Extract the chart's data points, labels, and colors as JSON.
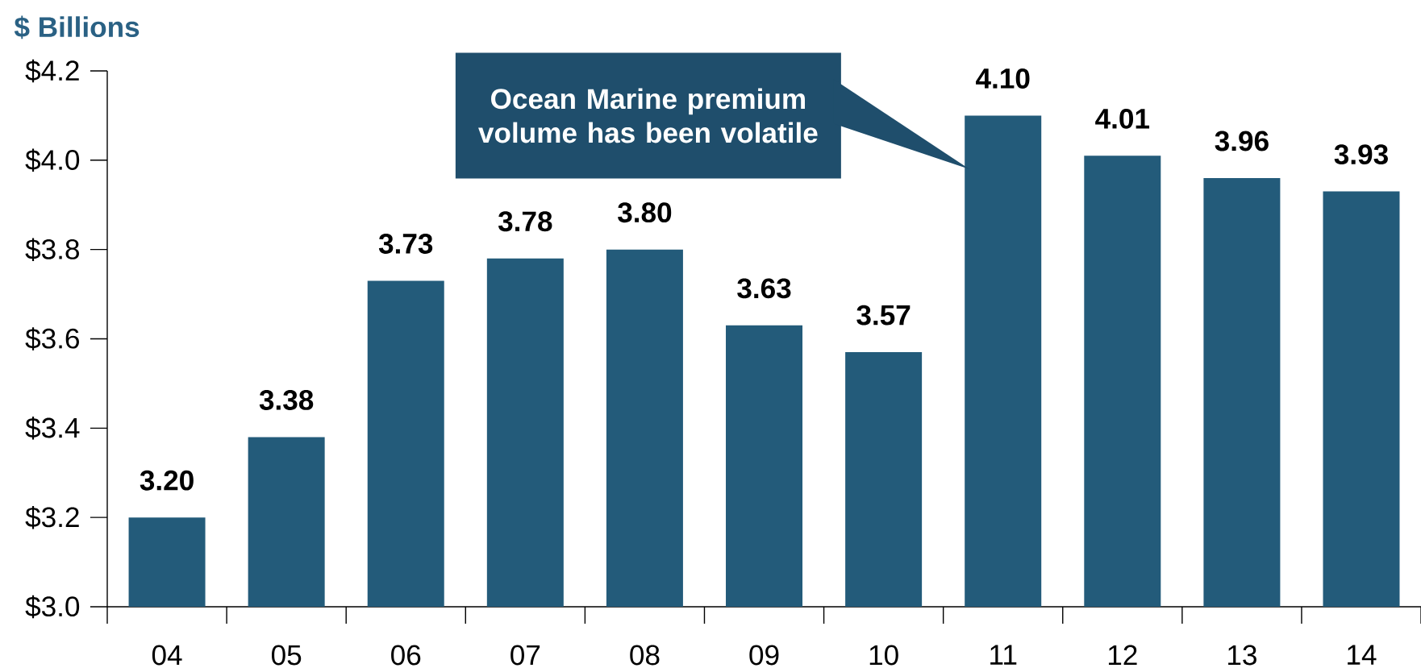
{
  "chart_data": {
    "type": "bar",
    "ylabel": "$ Billions",
    "categories": [
      "04",
      "05",
      "06",
      "07",
      "08",
      "09",
      "10",
      "11",
      "12",
      "13",
      "14"
    ],
    "values": [
      3.2,
      3.38,
      3.73,
      3.78,
      3.8,
      3.63,
      3.57,
      4.1,
      4.01,
      3.96,
      3.93
    ],
    "color": "#235b7a",
    "ylim": [
      3.0,
      4.2
    ],
    "yticks": [
      {
        "value": 3.0,
        "label": "$3.0"
      },
      {
        "value": 3.2,
        "label": "$3.2"
      },
      {
        "value": 3.4,
        "label": "$3.4"
      },
      {
        "value": 3.6,
        "label": "$3.6"
      },
      {
        "value": 3.8,
        "label": "$3.8"
      },
      {
        "value": 4.0,
        "label": "$4.0"
      },
      {
        "value": 4.2,
        "label": "$4.2"
      }
    ],
    "value_labels": [
      "3.20",
      "3.38",
      "3.73",
      "3.78",
      "3.80",
      "3.63",
      "3.57",
      "4.10",
      "4.01",
      "3.96",
      "3.93"
    ],
    "grid": false,
    "annotations": [
      "Ocean Marine premium volume has been volatile"
    ]
  }
}
